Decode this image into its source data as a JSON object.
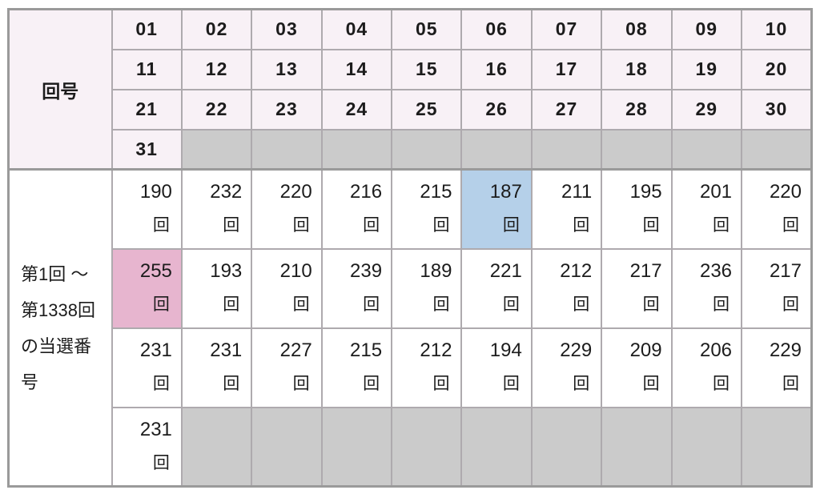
{
  "colors": {
    "header_bg": "#f8f1f6",
    "filler_bg": "#cbcbcb",
    "highlight_min_blue": "#b5d0e9",
    "highlight_max_pink": "#e7b5cf",
    "border_strong": "#9a9a9a",
    "border_inner": "#aeaaae",
    "text": "#1c1c1c"
  },
  "table": {
    "corner_label": "回号",
    "period_label_lines": [
      "第1回 ～",
      "第1338回",
      "の当選番",
      "号"
    ],
    "period_label_full": "第1回 ～ 第1338回の当選番号",
    "unit": "回",
    "header_rows": [
      [
        "01",
        "02",
        "03",
        "04",
        "05",
        "06",
        "07",
        "08",
        "09",
        "10"
      ],
      [
        "11",
        "12",
        "13",
        "14",
        "15",
        "16",
        "17",
        "18",
        "19",
        "20"
      ],
      [
        "21",
        "22",
        "23",
        "24",
        "25",
        "26",
        "27",
        "28",
        "29",
        "30"
      ],
      [
        "31",
        null,
        null,
        null,
        null,
        null,
        null,
        null,
        null,
        null
      ]
    ],
    "body_rows": [
      [
        {
          "value": "190"
        },
        {
          "value": "232"
        },
        {
          "value": "220"
        },
        {
          "value": "216"
        },
        {
          "value": "215"
        },
        {
          "value": "187",
          "highlight": "min"
        },
        {
          "value": "211"
        },
        {
          "value": "195"
        },
        {
          "value": "201"
        },
        {
          "value": "220"
        }
      ],
      [
        {
          "value": "255",
          "highlight": "max"
        },
        {
          "value": "193"
        },
        {
          "value": "210"
        },
        {
          "value": "239"
        },
        {
          "value": "189"
        },
        {
          "value": "221"
        },
        {
          "value": "212"
        },
        {
          "value": "217"
        },
        {
          "value": "236"
        },
        {
          "value": "217"
        }
      ],
      [
        {
          "value": "231"
        },
        {
          "value": "231"
        },
        {
          "value": "227"
        },
        {
          "value": "215"
        },
        {
          "value": "212"
        },
        {
          "value": "194"
        },
        {
          "value": "229"
        },
        {
          "value": "209"
        },
        {
          "value": "206"
        },
        {
          "value": "229"
        }
      ],
      [
        {
          "value": "231"
        },
        null,
        null,
        null,
        null,
        null,
        null,
        null,
        null,
        null
      ]
    ]
  },
  "chart_data": {
    "type": "table",
    "title": "",
    "row_header": "回号",
    "period_label": "第1回 ～ 第1338回の当選番号",
    "unit": "回",
    "numbers": [
      "01",
      "02",
      "03",
      "04",
      "05",
      "06",
      "07",
      "08",
      "09",
      "10",
      "11",
      "12",
      "13",
      "14",
      "15",
      "16",
      "17",
      "18",
      "19",
      "20",
      "21",
      "22",
      "23",
      "24",
      "25",
      "26",
      "27",
      "28",
      "29",
      "30",
      "31"
    ],
    "frequencies": [
      190,
      232,
      220,
      216,
      215,
      187,
      211,
      195,
      201,
      220,
      255,
      193,
      210,
      239,
      189,
      221,
      212,
      217,
      236,
      217,
      231,
      231,
      227,
      215,
      212,
      194,
      229,
      209,
      206,
      229,
      231
    ],
    "highlights": {
      "max": {
        "number": "11",
        "value": 255,
        "color": "#e7b5cf"
      },
      "min": {
        "number": "06",
        "value": 187,
        "color": "#b5d0e9"
      }
    },
    "layout": {
      "columns_per_row": 10,
      "filler_color": "#cbcbcb",
      "header_bg": "#f8f1f6"
    }
  }
}
